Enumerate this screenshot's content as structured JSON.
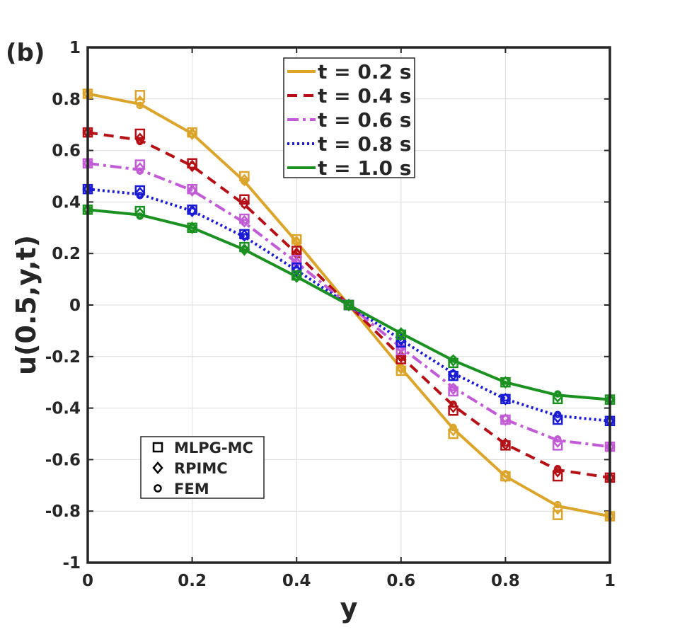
{
  "panel_label": "(b)",
  "chart_data": {
    "type": "line",
    "title": "",
    "xlabel": "y",
    "ylabel": "u(0.5,y,t)",
    "xlim": [
      0,
      1
    ],
    "ylim": [
      -1,
      1
    ],
    "grid": true,
    "x_ticks": [
      0,
      0.2,
      0.4,
      0.6,
      0.8,
      1
    ],
    "x_tick_labels": [
      "0",
      "0.2",
      "0.4",
      "0.6",
      "0.8",
      "1"
    ],
    "y_ticks": [
      -1,
      -0.8,
      -0.6,
      -0.4,
      -0.2,
      0,
      0.2,
      0.4,
      0.6,
      0.8,
      1
    ],
    "y_tick_labels": [
      "-1",
      "-0.8",
      "-0.6",
      "-0.4",
      "-0.2",
      "0",
      "0.2",
      "0.4",
      "0.6",
      "0.8",
      "1"
    ],
    "x": [
      0,
      0.1,
      0.2,
      0.3,
      0.4,
      0.5,
      0.6,
      0.7,
      0.8,
      0.9,
      1.0
    ],
    "legend_location": "top-center",
    "series": [
      {
        "name": "t = 0.2 s",
        "color": "#dba52b",
        "dash": "solid",
        "values": [
          0.82,
          0.78,
          0.665,
          0.48,
          0.245,
          0,
          -0.245,
          -0.48,
          -0.665,
          -0.78,
          -0.82
        ],
        "mlpg": [
          0.82,
          0.815,
          0.67,
          0.5,
          0.255,
          0,
          -0.255,
          -0.5,
          -0.665,
          -0.815,
          -0.82
        ],
        "rpimc": [
          0.82,
          0.79,
          0.665,
          0.485,
          0.245,
          0,
          -0.245,
          -0.485,
          -0.665,
          -0.79,
          -0.82
        ],
        "fem": [
          0.82,
          0.775,
          0.665,
          0.48,
          0.245,
          0,
          -0.245,
          -0.475,
          -0.655,
          -0.775,
          -0.82
        ]
      },
      {
        "name": "t = 0.4 s",
        "color": "#b51016",
        "dash": "dashed",
        "values": [
          0.67,
          0.64,
          0.54,
          0.39,
          0.2,
          0,
          -0.2,
          -0.39,
          -0.54,
          -0.64,
          -0.67
        ],
        "mlpg": [
          0.67,
          0.665,
          0.55,
          0.41,
          0.21,
          0,
          -0.21,
          -0.41,
          -0.545,
          -0.665,
          -0.67
        ],
        "rpimc": [
          0.67,
          0.645,
          0.54,
          0.395,
          0.2,
          0,
          -0.2,
          -0.395,
          -0.54,
          -0.645,
          -0.67
        ],
        "fem": [
          0.67,
          0.635,
          0.54,
          0.39,
          0.2,
          0,
          -0.2,
          -0.385,
          -0.535,
          -0.635,
          -0.67
        ]
      },
      {
        "name": "t = 0.6 s",
        "color": "#c25bd6",
        "dash": "dashdot",
        "values": [
          0.55,
          0.525,
          0.445,
          0.32,
          0.165,
          0,
          -0.165,
          -0.32,
          -0.445,
          -0.525,
          -0.55
        ],
        "mlpg": [
          0.55,
          0.545,
          0.45,
          0.335,
          0.175,
          0,
          -0.175,
          -0.335,
          -0.445,
          -0.545,
          -0.55
        ],
        "rpimc": [
          0.55,
          0.53,
          0.445,
          0.325,
          0.165,
          0,
          -0.165,
          -0.325,
          -0.445,
          -0.53,
          -0.55
        ],
        "fem": [
          0.55,
          0.52,
          0.445,
          0.32,
          0.165,
          0,
          -0.165,
          -0.32,
          -0.44,
          -0.52,
          -0.55
        ]
      },
      {
        "name": "t = 0.8 s",
        "color": "#1b1bd6",
        "dash": "dotted",
        "values": [
          0.45,
          0.43,
          0.365,
          0.265,
          0.135,
          0,
          -0.135,
          -0.265,
          -0.365,
          -0.43,
          -0.45
        ],
        "mlpg": [
          0.45,
          0.445,
          0.37,
          0.275,
          0.145,
          0,
          -0.145,
          -0.275,
          -0.365,
          -0.445,
          -0.45
        ],
        "rpimc": [
          0.45,
          0.435,
          0.365,
          0.27,
          0.135,
          0,
          -0.135,
          -0.27,
          -0.365,
          -0.435,
          -0.45
        ],
        "fem": [
          0.45,
          0.425,
          0.365,
          0.265,
          0.135,
          0,
          -0.135,
          -0.265,
          -0.36,
          -0.425,
          -0.45
        ]
      },
      {
        "name": "t = 1.0 s",
        "color": "#1a9120",
        "dash": "solid",
        "values": [
          0.37,
          0.35,
          0.3,
          0.215,
          0.11,
          0,
          -0.11,
          -0.215,
          -0.3,
          -0.35,
          -0.367
        ],
        "mlpg": [
          0.37,
          0.365,
          0.3,
          0.225,
          0.115,
          0,
          -0.115,
          -0.225,
          -0.3,
          -0.365,
          -0.367
        ],
        "rpimc": [
          0.37,
          0.355,
          0.3,
          0.215,
          0.11,
          0,
          -0.11,
          -0.215,
          -0.3,
          -0.355,
          -0.367
        ],
        "fem": [
          0.37,
          0.345,
          0.3,
          0.215,
          0.11,
          0,
          -0.11,
          -0.21,
          -0.295,
          -0.345,
          -0.367
        ]
      }
    ],
    "marker_legend": [
      {
        "label": "MLPG-MC",
        "marker": "square"
      },
      {
        "label": "RPIMC",
        "marker": "diamond"
      },
      {
        "label": "FEM",
        "marker": "circle"
      }
    ]
  }
}
